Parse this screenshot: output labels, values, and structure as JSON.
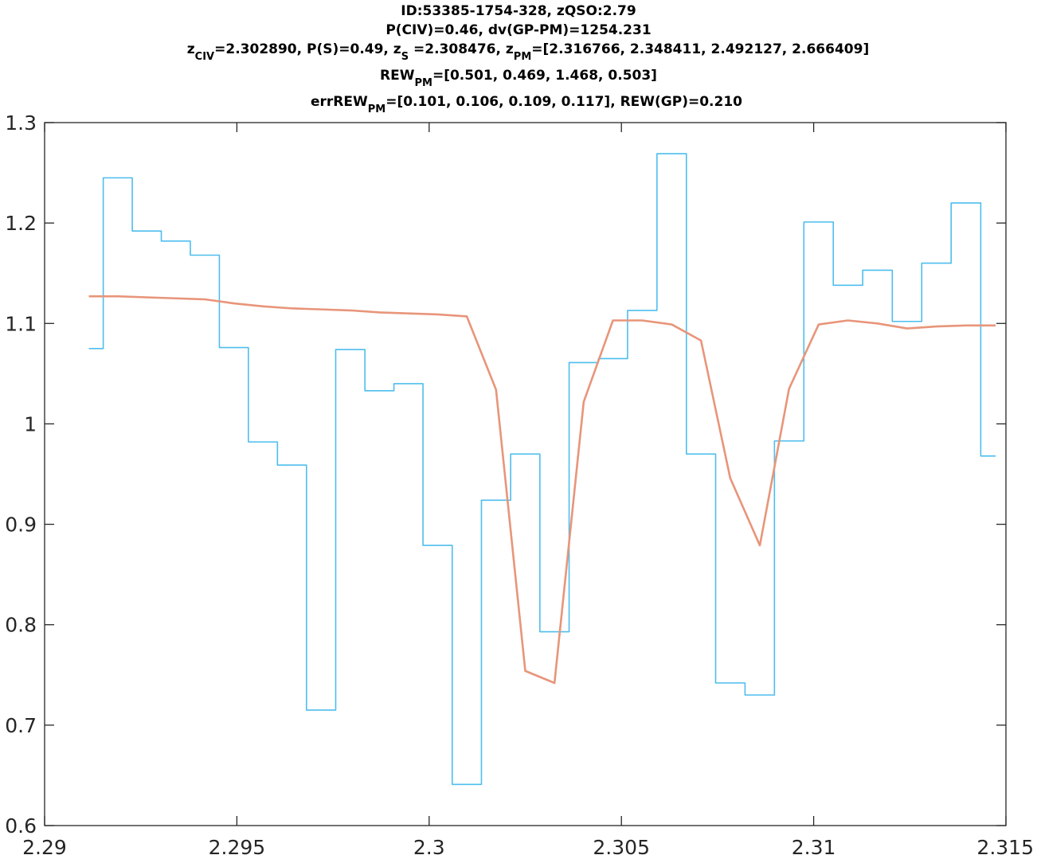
{
  "title": {
    "line1": "ID:53385-1754-328, zQSO:2.79",
    "line2": "P(CIV)=0.46, dv(GP-PM)=1254.231",
    "line3": {
      "z_civ_main": "z",
      "z_civ_sub": "CIV",
      "z_civ_val": "=2.302890, P(S)=0.49, z",
      "z_s_sub": "S",
      "z_s_val": " =2.308476, z",
      "z_pm_sub": "PM",
      "z_pm_val": "=[2.316766, 2.348411, 2.492127, 2.666409]"
    },
    "line4": {
      "main": "REW",
      "sub": "PM",
      "val": "=[0.501, 0.469, 1.468, 0.503]"
    },
    "line5": {
      "main": "errREW",
      "sub": "PM",
      "val": "=[0.101, 0.106, 0.109, 0.117], REW(GP)=0.210"
    }
  },
  "chart_data": {
    "type": "line",
    "xlim": [
      2.29,
      2.315
    ],
    "ylim": [
      0.6,
      1.3
    ],
    "xticks": [
      "2.29",
      "2.295",
      "2.3",
      "2.305",
      "2.31",
      "2.315"
    ],
    "xtick_values": [
      2.29,
      2.295,
      2.3,
      2.305,
      2.31,
      2.315
    ],
    "yticks": [
      "0.6",
      "0.7",
      "0.8",
      "0.9",
      "1",
      "1.1",
      "1.2",
      "1.3"
    ],
    "ytick_values": [
      0.6,
      0.7,
      0.8,
      0.9,
      1.0,
      1.1,
      1.2,
      1.3
    ],
    "grid": false,
    "series": [
      {
        "style": "stairs",
        "color": "#4DBEEE",
        "x": [
          2.29115,
          2.2919,
          2.29266,
          2.29341,
          2.29417,
          2.29492,
          2.29568,
          2.29643,
          2.29719,
          2.29795,
          2.29871,
          2.29946,
          2.30022,
          2.30098,
          2.30174,
          2.3025,
          2.30326,
          2.30402,
          2.30478,
          2.30554,
          2.30631,
          2.30707,
          2.30783,
          2.3086,
          2.30936,
          2.31013,
          2.31089,
          2.31166,
          2.31243,
          2.31319,
          2.31396,
          2.31473
        ],
        "y": [
          1.075,
          1.245,
          1.192,
          1.182,
          1.168,
          1.076,
          0.982,
          0.959,
          0.715,
          1.074,
          1.033,
          1.04,
          0.879,
          0.641,
          0.924,
          0.97,
          0.793,
          1.061,
          1.065,
          1.113,
          1.269,
          0.97,
          0.742,
          0.73,
          0.983,
          1.201,
          1.138,
          1.153,
          1.102,
          1.16,
          1.22,
          0.968
        ]
      },
      {
        "style": "line",
        "color": "#E8957A",
        "x": [
          2.29115,
          2.2919,
          2.29266,
          2.29341,
          2.29417,
          2.29492,
          2.29568,
          2.29643,
          2.29719,
          2.29795,
          2.29871,
          2.29946,
          2.30022,
          2.30098,
          2.30174,
          2.3025,
          2.30326,
          2.30402,
          2.30478,
          2.30554,
          2.30631,
          2.30707,
          2.30783,
          2.3086,
          2.30936,
          2.31013,
          2.31089,
          2.31166,
          2.31243,
          2.31319,
          2.31396,
          2.31473
        ],
        "y": [
          1.127,
          1.127,
          1.126,
          1.125,
          1.124,
          1.12,
          1.117,
          1.115,
          1.114,
          1.113,
          1.111,
          1.11,
          1.109,
          1.107,
          1.034,
          0.754,
          0.742,
          1.022,
          1.103,
          1.103,
          1.099,
          1.083,
          0.946,
          0.879,
          1.035,
          1.099,
          1.103,
          1.1,
          1.095,
          1.097,
          1.098,
          1.098
        ]
      }
    ]
  }
}
